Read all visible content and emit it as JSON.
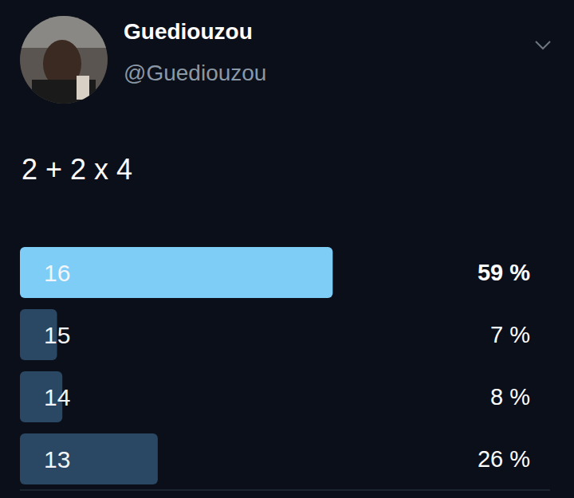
{
  "header": {
    "name": "Guediouzou",
    "handle": "@Guediouzou"
  },
  "chart_data": {
    "type": "bar",
    "title": "2 + 2 x 4",
    "orientation": "horizontal",
    "categories": [
      "16",
      "15",
      "14",
      "13"
    ],
    "values": [
      59,
      7,
      8,
      26
    ],
    "value_labels": [
      "59 %",
      "7 %",
      "8 %",
      "26 %"
    ],
    "colors": [
      "#7dcdf7",
      "#2a4763",
      "#2a4763",
      "#2a4763"
    ],
    "xlim": [
      0,
      100
    ],
    "data_labels": true,
    "tick_labels": false
  }
}
